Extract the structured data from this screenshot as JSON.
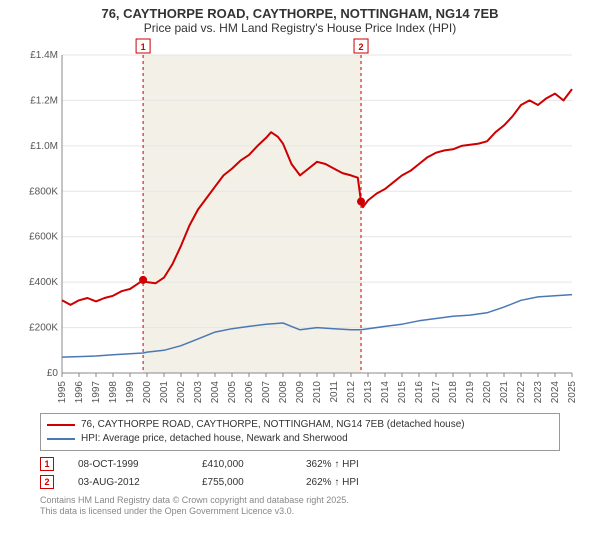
{
  "title_line1": "76, CAYTHORPE ROAD, CAYTHORPE, NOTTINGHAM, NG14 7EB",
  "title_line2": "Price paid vs. HM Land Registry's House Price Index (HPI)",
  "chart": {
    "type": "line",
    "background_color": "#ffffff",
    "highlight_band_color": "#f3f0e8",
    "grid_color": "#e6e6e6",
    "axis_color": "#888888",
    "x": {
      "min": 1995,
      "max": 2025,
      "ticks": [
        1995,
        1996,
        1997,
        1998,
        1999,
        2000,
        2001,
        2002,
        2003,
        2004,
        2005,
        2006,
        2007,
        2008,
        2009,
        2010,
        2011,
        2012,
        2013,
        2014,
        2015,
        2016,
        2017,
        2018,
        2019,
        2020,
        2021,
        2022,
        2023,
        2024,
        2025
      ]
    },
    "y": {
      "min": 0,
      "max": 1400000,
      "ticks": [
        0,
        200000,
        400000,
        600000,
        800000,
        1000000,
        1200000,
        1400000
      ],
      "tick_labels": [
        "£0",
        "£200K",
        "£400K",
        "£600K",
        "£800K",
        "£1.0M",
        "£1.2M",
        "£1.4M"
      ]
    },
    "highlight_band": {
      "x_start": 1999.77,
      "x_end": 2012.59
    },
    "series": [
      {
        "id": "property",
        "label": "76, CAYTHORPE ROAD, CAYTHORPE, NOTTINGHAM, NG14 7EB (detached house)",
        "color": "#cc0000",
        "line_width": 2,
        "dot_color": "#cc0000",
        "dot_radius": 4,
        "points": [
          [
            1995.0,
            320000
          ],
          [
            1995.5,
            300000
          ],
          [
            1996.0,
            320000
          ],
          [
            1996.5,
            330000
          ],
          [
            1997.0,
            315000
          ],
          [
            1997.5,
            330000
          ],
          [
            1998.0,
            340000
          ],
          [
            1998.5,
            360000
          ],
          [
            1999.0,
            370000
          ],
          [
            1999.5,
            395000
          ],
          [
            1999.77,
            410000
          ],
          [
            2000.0,
            400000
          ],
          [
            2000.5,
            395000
          ],
          [
            2001.0,
            420000
          ],
          [
            2001.5,
            480000
          ],
          [
            2002.0,
            560000
          ],
          [
            2002.5,
            650000
          ],
          [
            2003.0,
            720000
          ],
          [
            2003.5,
            770000
          ],
          [
            2004.0,
            820000
          ],
          [
            2004.5,
            870000
          ],
          [
            2005.0,
            900000
          ],
          [
            2005.5,
            935000
          ],
          [
            2006.0,
            960000
          ],
          [
            2006.5,
            1000000
          ],
          [
            2007.0,
            1035000
          ],
          [
            2007.3,
            1060000
          ],
          [
            2007.7,
            1040000
          ],
          [
            2008.0,
            1010000
          ],
          [
            2008.5,
            920000
          ],
          [
            2009.0,
            870000
          ],
          [
            2009.5,
            900000
          ],
          [
            2010.0,
            930000
          ],
          [
            2010.5,
            920000
          ],
          [
            2011.0,
            900000
          ],
          [
            2011.5,
            880000
          ],
          [
            2012.0,
            870000
          ],
          [
            2012.4,
            860000
          ],
          [
            2012.59,
            755000
          ],
          [
            2012.7,
            730000
          ],
          [
            2013.0,
            760000
          ],
          [
            2013.5,
            790000
          ],
          [
            2014.0,
            810000
          ],
          [
            2014.5,
            840000
          ],
          [
            2015.0,
            870000
          ],
          [
            2015.5,
            890000
          ],
          [
            2016.0,
            920000
          ],
          [
            2016.5,
            950000
          ],
          [
            2017.0,
            970000
          ],
          [
            2017.5,
            980000
          ],
          [
            2018.0,
            985000
          ],
          [
            2018.5,
            1000000
          ],
          [
            2019.0,
            1005000
          ],
          [
            2019.5,
            1010000
          ],
          [
            2020.0,
            1020000
          ],
          [
            2020.5,
            1060000
          ],
          [
            2021.0,
            1090000
          ],
          [
            2021.5,
            1130000
          ],
          [
            2022.0,
            1180000
          ],
          [
            2022.5,
            1200000
          ],
          [
            2023.0,
            1180000
          ],
          [
            2023.5,
            1210000
          ],
          [
            2024.0,
            1230000
          ],
          [
            2024.5,
            1200000
          ],
          [
            2025.0,
            1250000
          ]
        ],
        "sale_dots": [
          {
            "x": 1999.77,
            "y": 410000
          },
          {
            "x": 2012.59,
            "y": 755000
          }
        ]
      },
      {
        "id": "hpi",
        "label": "HPI: Average price, detached house, Newark and Sherwood",
        "color": "#4a78b5",
        "line_width": 1.5,
        "points": [
          [
            1995.0,
            70000
          ],
          [
            1996.0,
            72000
          ],
          [
            1997.0,
            75000
          ],
          [
            1998.0,
            80000
          ],
          [
            1999.0,
            85000
          ],
          [
            1999.77,
            88000
          ],
          [
            2000.0,
            92000
          ],
          [
            2001.0,
            100000
          ],
          [
            2002.0,
            120000
          ],
          [
            2003.0,
            150000
          ],
          [
            2004.0,
            180000
          ],
          [
            2005.0,
            195000
          ],
          [
            2006.0,
            205000
          ],
          [
            2007.0,
            215000
          ],
          [
            2008.0,
            220000
          ],
          [
            2008.5,
            205000
          ],
          [
            2009.0,
            190000
          ],
          [
            2010.0,
            200000
          ],
          [
            2011.0,
            195000
          ],
          [
            2012.0,
            190000
          ],
          [
            2012.59,
            190000
          ],
          [
            2013.0,
            195000
          ],
          [
            2014.0,
            205000
          ],
          [
            2015.0,
            215000
          ],
          [
            2016.0,
            230000
          ],
          [
            2017.0,
            240000
          ],
          [
            2018.0,
            250000
          ],
          [
            2019.0,
            255000
          ],
          [
            2020.0,
            265000
          ],
          [
            2021.0,
            290000
          ],
          [
            2022.0,
            320000
          ],
          [
            2023.0,
            335000
          ],
          [
            2024.0,
            340000
          ],
          [
            2025.0,
            345000
          ]
        ]
      }
    ],
    "markers": [
      {
        "n": "1",
        "x": 1999.77,
        "color": "#cc0000"
      },
      {
        "n": "2",
        "x": 2012.59,
        "color": "#cc0000"
      }
    ]
  },
  "legend": {
    "border_color": "#999999",
    "items": [
      {
        "color": "#cc0000",
        "label": "76, CAYTHORPE ROAD, CAYTHORPE, NOTTINGHAM, NG14 7EB (detached house)"
      },
      {
        "color": "#4a78b5",
        "label": "HPI: Average price, detached house, Newark and Sherwood"
      }
    ]
  },
  "sales": [
    {
      "n": "1",
      "color": "#cc0000",
      "date": "08-OCT-1999",
      "price": "£410,000",
      "pct": "362% ↑ HPI"
    },
    {
      "n": "2",
      "color": "#cc0000",
      "date": "03-AUG-2012",
      "price": "£755,000",
      "pct": "262% ↑ HPI"
    }
  ],
  "footer": {
    "line1": "Contains HM Land Registry data © Crown copyright and database right 2025.",
    "line2": "This data is licensed under the Open Government Licence v3.0."
  }
}
